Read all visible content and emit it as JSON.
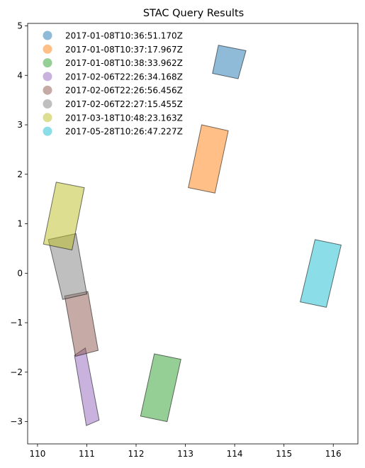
{
  "chart_data": {
    "type": "polygon",
    "title": "STAC Query Results",
    "xlabel": "",
    "ylabel": "",
    "xlim": [
      109.8,
      116.5
    ],
    "ylim": [
      -3.45,
      5.05
    ],
    "xticks": [
      110,
      111,
      112,
      113,
      114,
      115,
      116
    ],
    "yticks": [
      -3,
      -2,
      -1,
      0,
      1,
      2,
      3,
      4,
      5
    ],
    "xtick_labels": [
      "110",
      "111",
      "112",
      "113",
      "114",
      "115",
      "116"
    ],
    "ytick_labels": [
      "−3",
      "−2",
      "−1",
      "0",
      "1",
      "2",
      "3",
      "4",
      "5"
    ],
    "grid": false,
    "legend_position": "upper-left",
    "series": [
      {
        "name": "2017-01-08T10:36:51.170Z",
        "color": "#1f77b4",
        "polygon": [
          [
            113.67,
            4.61
          ],
          [
            114.23,
            4.5
          ],
          [
            114.07,
            3.93
          ],
          [
            113.55,
            4.04
          ]
        ]
      },
      {
        "name": "2017-01-08T10:37:17.967Z",
        "color": "#ff7f0e",
        "polygon": [
          [
            113.33,
            3.0
          ],
          [
            113.87,
            2.88
          ],
          [
            113.6,
            1.62
          ],
          [
            113.06,
            1.73
          ]
        ]
      },
      {
        "name": "2017-01-08T10:38:33.962Z",
        "color": "#2ca02c",
        "polygon": [
          [
            112.37,
            -1.63
          ],
          [
            112.91,
            -1.74
          ],
          [
            112.63,
            -3.0
          ],
          [
            112.09,
            -2.89
          ]
        ]
      },
      {
        "name": "2017-02-06T22:26:34.168Z",
        "color": "#9467bd",
        "polygon": [
          [
            110.97,
            -1.51
          ],
          [
            111.25,
            -2.97
          ],
          [
            110.99,
            -3.08
          ],
          [
            110.75,
            -1.66
          ]
        ]
      },
      {
        "name": "2017-02-06T22:26:56.456Z",
        "color": "#8c564b",
        "polygon": [
          [
            110.55,
            -0.46
          ],
          [
            111.02,
            -0.37
          ],
          [
            111.23,
            -1.56
          ],
          [
            110.77,
            -1.68
          ]
        ]
      },
      {
        "name": "2017-02-06T22:27:15.455Z",
        "color": "#7f7f7f",
        "polygon": [
          [
            110.22,
            0.68
          ],
          [
            110.78,
            0.8
          ],
          [
            111.0,
            -0.42
          ],
          [
            110.51,
            -0.53
          ]
        ]
      },
      {
        "name": "2017-03-18T10:48:23.163Z",
        "color": "#bcbd22",
        "polygon": [
          [
            110.38,
            1.84
          ],
          [
            110.95,
            1.73
          ],
          [
            110.7,
            0.47
          ],
          [
            110.12,
            0.59
          ]
        ]
      },
      {
        "name": "2017-05-28T10:26:47.227Z",
        "color": "#17becf",
        "polygon": [
          [
            115.63,
            0.68
          ],
          [
            116.16,
            0.57
          ],
          [
            115.86,
            -0.69
          ],
          [
            115.33,
            -0.58
          ]
        ]
      }
    ]
  }
}
